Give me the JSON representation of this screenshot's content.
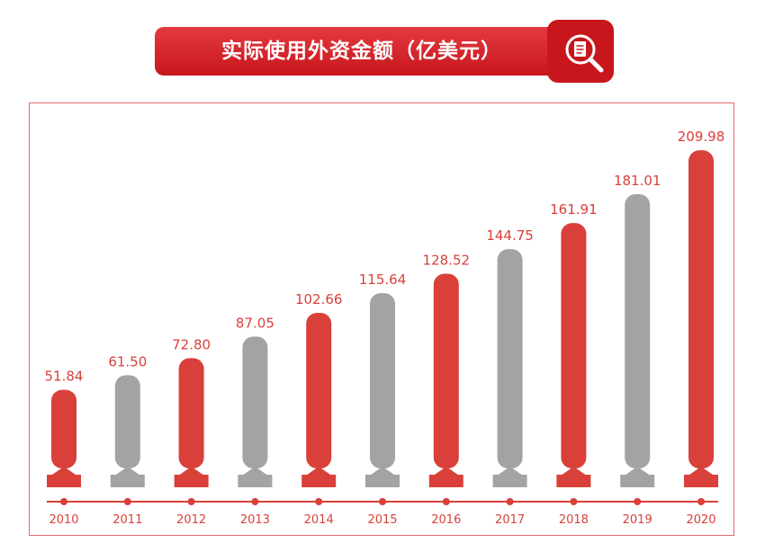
{
  "title": "实际使用外资金额（亿美元）",
  "icon": "document-search-icon",
  "colors": {
    "red": "#d9403a",
    "gray": "#a3a3a3",
    "axis": "#d9403a",
    "title_bg": "#c8161d"
  },
  "chart_data": {
    "type": "bar",
    "title": "实际使用外资金额（亿美元）",
    "categories": [
      "2010",
      "2011",
      "2012",
      "2013",
      "2014",
      "2015",
      "2016",
      "2017",
      "2018",
      "2019",
      "2020"
    ],
    "values": [
      51.84,
      61.5,
      72.8,
      87.05,
      102.66,
      115.64,
      128.52,
      144.75,
      161.91,
      181.01,
      209.98
    ],
    "labels": [
      "51.84",
      "61.50",
      "72.80",
      "87.05",
      "102.66",
      "115.64",
      "128.52",
      "144.75",
      "161.91",
      "181.01",
      "209.98"
    ],
    "bar_colors": [
      "red",
      "gray",
      "red",
      "gray",
      "red",
      "gray",
      "red",
      "gray",
      "red",
      "gray",
      "red"
    ],
    "xlabel": "",
    "ylabel": "",
    "grid": false,
    "legend": "none"
  }
}
